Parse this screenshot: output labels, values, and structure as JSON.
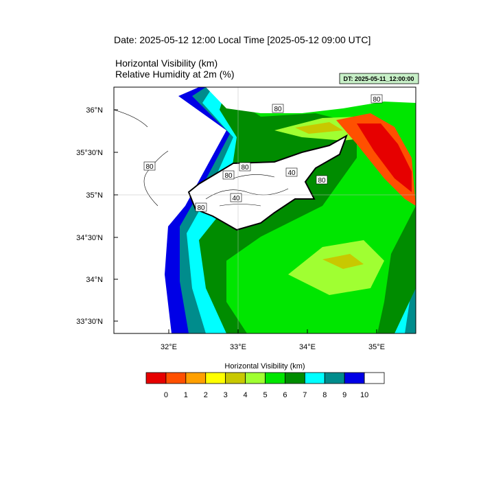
{
  "header": {
    "date_line": "Date: 2025-05-12  12:00 Local Time [2025-05-12  09:00 UTC]",
    "title_line1": "Horizontal Visibility   (km)",
    "title_line2": "Relative Humidity at 2m   (%)",
    "dt_box": "DT: 2025-05-11_12:00:00"
  },
  "map": {
    "lat_labels": [
      "36°N",
      "35°30'N",
      "35°N",
      "34°30'N",
      "34°N",
      "33°30'N"
    ],
    "lon_labels": [
      "32°E",
      "33°E",
      "34°E",
      "35°E"
    ],
    "contour_labels": [
      "80",
      "80",
      "80",
      "80",
      "80",
      "80",
      "80",
      "40",
      "40"
    ]
  },
  "colorbar": {
    "title": "Horizontal Visibility  (km)",
    "colors": [
      "#e60000",
      "#ff5000",
      "#ffa000",
      "#ffff00",
      "#c8c800",
      "#a0ff32",
      "#00e600",
      "#008c00",
      "#00ffff",
      "#008c8c",
      "#0000e6",
      "#ffffff"
    ],
    "ticks": [
      0,
      1,
      2,
      3,
      4,
      5,
      6,
      7,
      8,
      9,
      10
    ]
  }
}
